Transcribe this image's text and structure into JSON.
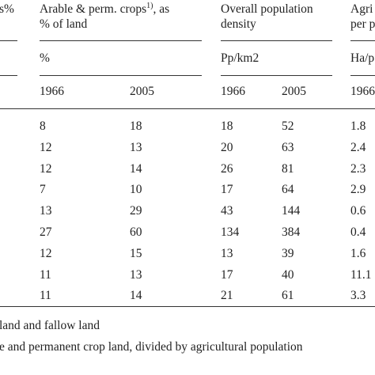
{
  "header": {
    "col0_partial": "s%",
    "group1_title": "Arable & perm. crops",
    "group1_footnote_mark": "1)",
    "group1_title_cont": ", as",
    "group1_title_line2": "% of land",
    "group2_title_line1": "Overall population",
    "group2_title_line2": "density",
    "group3_title_line1": "Agri",
    "group3_title_line2": "per p",
    "group1_unit": "%",
    "group2_unit": "Pp/km2",
    "group3_unit": "Ha/p",
    "years": [
      "1966",
      "2005",
      "1966",
      "2005",
      "1966"
    ]
  },
  "rows": [
    [
      "8",
      "18",
      "18",
      "52",
      "1.8"
    ],
    [
      "12",
      "13",
      "20",
      "63",
      "2.4"
    ],
    [
      "12",
      "14",
      "26",
      "81",
      "2.3"
    ],
    [
      "7",
      "10",
      "17",
      "64",
      "2.9"
    ],
    [
      "13",
      "29",
      "43",
      "144",
      "0.6"
    ],
    [
      "27",
      "60",
      "134",
      "384",
      "0.4"
    ],
    [
      "12",
      "15",
      "13",
      "39",
      "1.6"
    ],
    [
      "11",
      "13",
      "17",
      "40",
      "11.1"
    ],
    [
      "11",
      "14",
      "21",
      "61",
      "3.3"
    ]
  ],
  "footnotes": [
    "land and fallow land",
    "e and permanent crop land, divided by agricultural population"
  ]
}
